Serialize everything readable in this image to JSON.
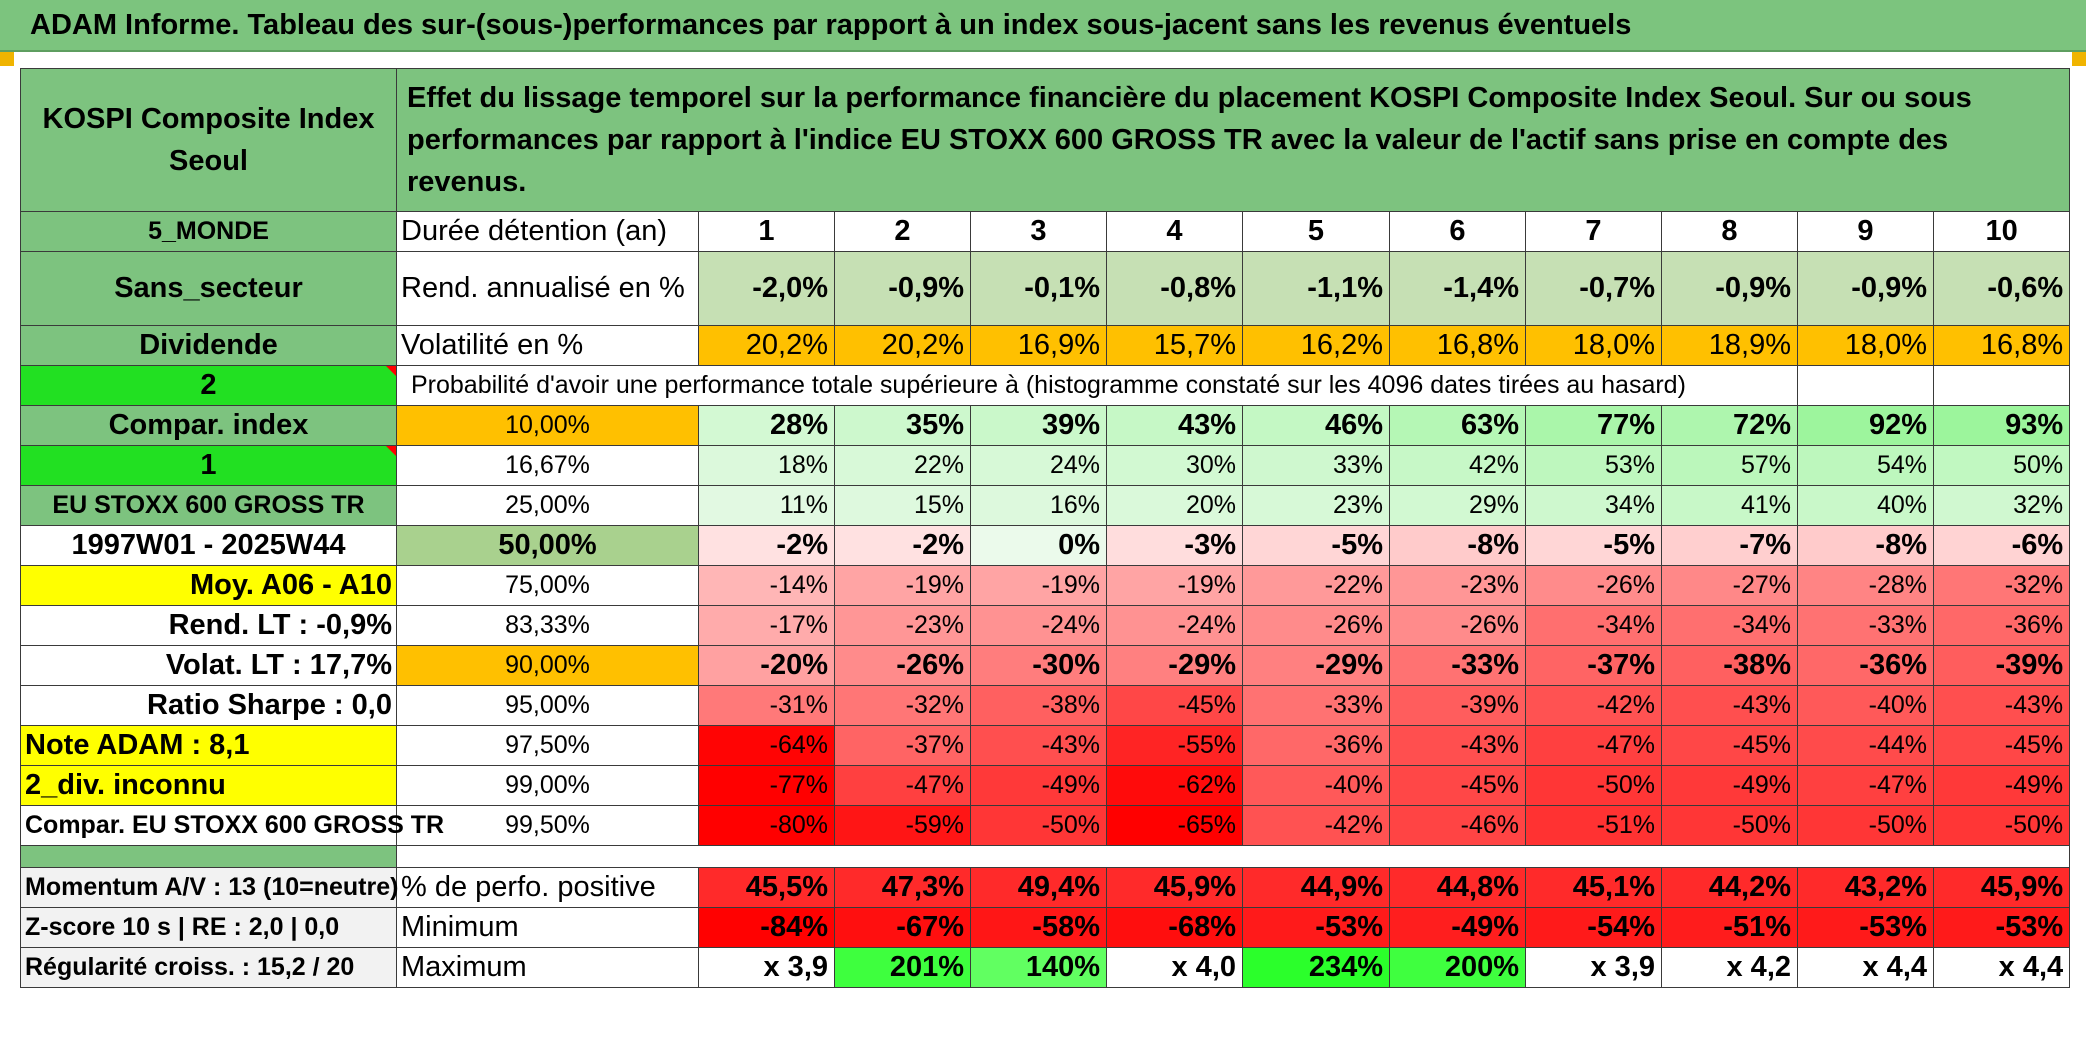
{
  "title": "ADAM Informe. Tableau des sur-(sous-)performances par rapport à un index sous-jacent sans les revenus éventuels",
  "header": {
    "asset": "KOSPI Composite Index Seoul",
    "description": "Effet du lissage temporel sur la performance financière du placement KOSPI Composite Index Seoul. Sur ou sous performances par rapport à l'indice EU STOXX 600 GROSS TR avec la valeur de l'actif sans prise en compte des revenus."
  },
  "colors": {
    "header_green": "#7dc37f",
    "bright_green": "#22e022",
    "yellow": "#ffff00",
    "orange": "#ffc000",
    "red_text": "#d40000"
  },
  "side": {
    "region": "5_MONDE",
    "sector": "Sans_secteur",
    "dividend": "Dividende",
    "num2": "2",
    "compar_index": "Compar. index",
    "num1": "1",
    "index_name": "EU STOXX 600 GROSS TR",
    "period": "1997W01 - 2025W44",
    "moy": "Moy. A06 - A10",
    "rend_lt": "Rend. LT :    -0,9%",
    "volat_lt": "Volat. LT :    17,7%",
    "sharpe": "Ratio Sharpe :    0,0",
    "note": "Note ADAM : 8,1",
    "div": "2_div. inconnu",
    "compar": "Compar. EU STOXX 600 GROSS TR"
  },
  "duration": {
    "label": "Durée détention (an)",
    "years": [
      "1",
      "2",
      "3",
      "4",
      "5",
      "6",
      "7",
      "8",
      "9",
      "10"
    ]
  },
  "rend": {
    "label": "Rend. annualisé en %",
    "values": [
      "-2,0%",
      "-0,9%",
      "-0,1%",
      "-0,8%",
      "-1,1%",
      "-1,4%",
      "-0,7%",
      "-0,9%",
      "-0,9%",
      "-0,6%"
    ]
  },
  "vol": {
    "label": "Volatilité en %",
    "values": [
      "20,2%",
      "20,2%",
      "16,9%",
      "15,7%",
      "16,2%",
      "16,8%",
      "18,0%",
      "18,9%",
      "18,0%",
      "16,8%"
    ]
  },
  "prob_title": "Probabilité d'avoir une performance totale supérieure à (histogramme constaté sur les 4096 dates tirées au hasard)",
  "percentiles": [
    {
      "p": "10,00%",
      "values": [
        "28%",
        "35%",
        "39%",
        "43%",
        "46%",
        "63%",
        "77%",
        "72%",
        "92%",
        "93%"
      ],
      "bold": true,
      "pbg": "#ffc000"
    },
    {
      "p": "16,67%",
      "values": [
        "18%",
        "22%",
        "24%",
        "30%",
        "33%",
        "42%",
        "53%",
        "57%",
        "54%",
        "50%"
      ],
      "bold": false,
      "pbg": "#ffffff"
    },
    {
      "p": "25,00%",
      "values": [
        "11%",
        "15%",
        "16%",
        "20%",
        "23%",
        "29%",
        "34%",
        "41%",
        "40%",
        "32%"
      ],
      "bold": false,
      "pbg": "#ffffff"
    },
    {
      "p": "50,00%",
      "values": [
        "-2%",
        "-2%",
        "0%",
        "-3%",
        "-5%",
        "-8%",
        "-5%",
        "-7%",
        "-8%",
        "-6%"
      ],
      "bold": true,
      "pbg": "#a9d18e"
    },
    {
      "p": "75,00%",
      "values": [
        "-14%",
        "-19%",
        "-19%",
        "-19%",
        "-22%",
        "-23%",
        "-26%",
        "-27%",
        "-28%",
        "-32%"
      ],
      "bold": false,
      "pbg": "#ffffff"
    },
    {
      "p": "83,33%",
      "values": [
        "-17%",
        "-23%",
        "-24%",
        "-24%",
        "-26%",
        "-26%",
        "-34%",
        "-34%",
        "-33%",
        "-36%"
      ],
      "bold": false,
      "pbg": "#ffffff"
    },
    {
      "p": "90,00%",
      "values": [
        "-20%",
        "-26%",
        "-30%",
        "-29%",
        "-29%",
        "-33%",
        "-37%",
        "-38%",
        "-36%",
        "-39%"
      ],
      "bold": true,
      "pbg": "#ffc000"
    },
    {
      "p": "95,00%",
      "values": [
        "-31%",
        "-32%",
        "-38%",
        "-45%",
        "-33%",
        "-39%",
        "-42%",
        "-43%",
        "-40%",
        "-43%"
      ],
      "bold": false,
      "pbg": "#ffffff"
    },
    {
      "p": "97,50%",
      "values": [
        "-64%",
        "-37%",
        "-43%",
        "-55%",
        "-36%",
        "-43%",
        "-47%",
        "-45%",
        "-44%",
        "-45%"
      ],
      "bold": false,
      "pbg": "#ffffff"
    },
    {
      "p": "99,00%",
      "values": [
        "-77%",
        "-47%",
        "-49%",
        "-62%",
        "-40%",
        "-45%",
        "-50%",
        "-49%",
        "-47%",
        "-49%"
      ],
      "bold": false,
      "pbg": "#ffffff"
    },
    {
      "p": "99,50%",
      "values": [
        "-80%",
        "-59%",
        "-50%",
        "-65%",
        "-42%",
        "-46%",
        "-51%",
        "-50%",
        "-50%",
        "-50%"
      ],
      "bold": false,
      "pbg": "#ffffff"
    }
  ],
  "bottom": {
    "momentum": "Momentum A/V : 13 (10=neutre)",
    "zscore": "Z-score 10 s | RE : 2,0 | 0,0",
    "regularite": "Régularité croiss. : 15,2 / 20",
    "pos_label": "% de perfo. positive",
    "pos_values": [
      "45,5%",
      "47,3%",
      "49,4%",
      "45,9%",
      "44,9%",
      "44,8%",
      "45,1%",
      "44,2%",
      "43,2%",
      "45,9%"
    ],
    "min_label": "Minimum",
    "min_values": [
      "-84%",
      "-67%",
      "-58%",
      "-68%",
      "-53%",
      "-49%",
      "-54%",
      "-51%",
      "-53%",
      "-53%"
    ],
    "max_label": "Maximum",
    "max_values": [
      "x 3,9",
      "201%",
      "140%",
      "x 4,0",
      "234%",
      "200%",
      "x 3,9",
      "x 4,2",
      "x 4,4",
      "x 4,4"
    ]
  }
}
